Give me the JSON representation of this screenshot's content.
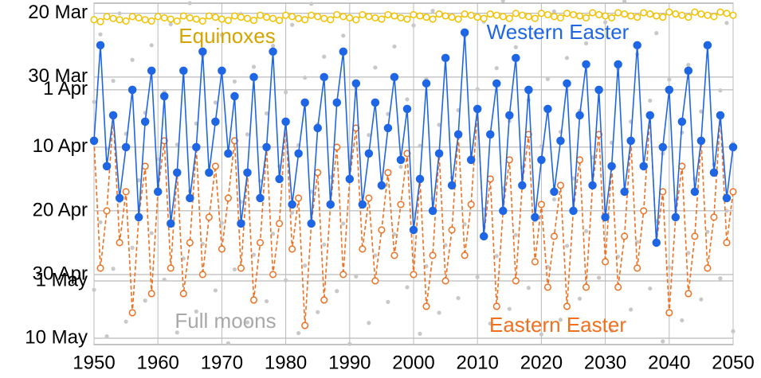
{
  "chart_data": {
    "type": "line",
    "x": [
      1950,
      1951,
      1952,
      1953,
      1954,
      1955,
      1956,
      1957,
      1958,
      1959,
      1960,
      1961,
      1962,
      1963,
      1964,
      1965,
      1966,
      1967,
      1968,
      1969,
      1970,
      1971,
      1972,
      1973,
      1974,
      1975,
      1976,
      1977,
      1978,
      1979,
      1980,
      1981,
      1982,
      1983,
      1984,
      1985,
      1986,
      1987,
      1988,
      1989,
      1990,
      1991,
      1992,
      1993,
      1994,
      1995,
      1996,
      1997,
      1998,
      1999,
      2000,
      2001,
      2002,
      2003,
      2004,
      2005,
      2006,
      2007,
      2008,
      2009,
      2010,
      2011,
      2012,
      2013,
      2014,
      2015,
      2016,
      2017,
      2018,
      2019,
      2020,
      2021,
      2022,
      2023,
      2024,
      2025,
      2026,
      2027,
      2028,
      2029,
      2030,
      2031,
      2032,
      2033,
      2034,
      2035,
      2036,
      2037,
      2038,
      2039,
      2040,
      2041,
      2042,
      2043,
      2044,
      2045,
      2046,
      2047,
      2048,
      2049,
      2050
    ],
    "series": [
      {
        "name": "Eastern Easter",
        "color": "#f07020",
        "marker": "open",
        "dashed": true,
        "values": [
          40,
          60,
          51,
          36,
          56,
          48,
          67,
          52,
          44,
          64,
          48,
          40,
          60,
          45,
          64,
          56,
          41,
          61,
          52,
          44,
          57,
          49,
          40,
          60,
          45,
          65,
          56,
          41,
          61,
          53,
          37,
          57,
          49,
          69,
          53,
          45,
          65,
          50,
          41,
          61,
          46,
          38,
          57,
          49,
          62,
          54,
          45,
          58,
          50,
          42,
          61,
          46,
          66,
          58,
          42,
          62,
          54,
          39,
          58,
          50,
          35,
          55,
          46,
          66,
          51,
          43,
          62,
          47,
          39,
          59,
          50,
          63,
          55,
          47,
          66,
          51,
          43,
          63,
          47,
          39,
          59,
          44,
          63,
          55,
          40,
          60,
          51,
          36,
          56,
          48,
          67,
          52,
          44,
          64,
          55,
          40,
          60,
          52,
          36,
          56,
          48
        ]
      },
      {
        "name": "Western Easter",
        "color": "#1f66e5",
        "marker": "filled",
        "dashed": false,
        "values": [
          40,
          25,
          44,
          36,
          49,
          41,
          32,
          52,
          37,
          29,
          48,
          33,
          53,
          45,
          29,
          49,
          41,
          26,
          45,
          37,
          29,
          42,
          33,
          53,
          45,
          30,
          49,
          41,
          26,
          46,
          37,
          50,
          42,
          34,
          53,
          38,
          30,
          50,
          34,
          26,
          46,
          31,
          50,
          42,
          34,
          47,
          38,
          30,
          43,
          35,
          54,
          46,
          31,
          51,
          42,
          27,
          47,
          39,
          23,
          43,
          35,
          55,
          39,
          31,
          51,
          36,
          27,
          47,
          32,
          52,
          43,
          35,
          48,
          40,
          31,
          51,
          36,
          28,
          47,
          32,
          52,
          44,
          28,
          48,
          40,
          25,
          44,
          36,
          56,
          41,
          32,
          52,
          37,
          29,
          48,
          40,
          25,
          45,
          36,
          49,
          41
        ]
      },
      {
        "name": "Equinoxes",
        "color": "#f2c200",
        "marker": "open",
        "dashed": false,
        "values": [
          21.0,
          21.3,
          20.5,
          20.8,
          21.0,
          21.2,
          20.5,
          20.7,
          21.0,
          21.2,
          20.5,
          20.7,
          20.9,
          21.2,
          20.4,
          20.7,
          20.9,
          21.2,
          20.4,
          20.6,
          20.9,
          21.1,
          20.4,
          20.6,
          20.8,
          21.1,
          20.3,
          20.6,
          20.8,
          21.1,
          20.3,
          20.5,
          20.8,
          21.0,
          20.3,
          20.5,
          20.8,
          21.0,
          20.2,
          20.5,
          20.7,
          21.0,
          20.2,
          20.5,
          20.7,
          20.9,
          20.2,
          20.4,
          20.7,
          20.9,
          20.2,
          20.4,
          20.6,
          20.9,
          20.1,
          20.4,
          20.6,
          20.9,
          20.1,
          20.3,
          20.6,
          20.8,
          20.1,
          20.3,
          20.5,
          20.8,
          20.0,
          20.3,
          20.5,
          20.8,
          20.0,
          20.2,
          20.5,
          20.7,
          20.0,
          20.2,
          20.4,
          20.7,
          19.9,
          20.2,
          20.4,
          20.7,
          19.9,
          20.1,
          20.4,
          20.6,
          19.9,
          20.1,
          20.4,
          20.6,
          19.8,
          20.1,
          20.3,
          20.6,
          19.8,
          20.1,
          20.3,
          20.5,
          19.8,
          20.0,
          20.3
        ]
      }
    ],
    "full_moons": {
      "name": "Full moons",
      "color": "#c8c8c8",
      "x": [
        1950,
        1950,
        1951,
        1951,
        1952,
        1952,
        1953,
        1953,
        1954,
        1954,
        1955,
        1955,
        1956,
        1956,
        1957,
        1958,
        1958,
        1959,
        1959,
        1960,
        1961,
        1961,
        1962,
        1962,
        1963,
        1963,
        1964,
        1964,
        1965,
        1965,
        1966,
        1966,
        1967,
        1967,
        1968,
        1969,
        1969,
        1970,
        1970,
        1971,
        1971,
        1972,
        1972,
        1973,
        1973,
        1974,
        1974,
        1975,
        1975,
        1976,
        1977,
        1977,
        1978,
        1978,
        1979,
        1980,
        1980,
        1981,
        1981,
        1982,
        1982,
        1983,
        1983,
        1984,
        1984,
        1985,
        1985,
        1986,
        1986,
        1987,
        1988,
        1988,
        1989,
        1989,
        1990,
        1990,
        1991,
        1991,
        1992,
        1992,
        1993,
        1993,
        1994,
        1994,
        1995,
        1996,
        1996,
        1997,
        1997,
        1998,
        1999,
        1999,
        2000,
        2000,
        2001,
        2001,
        2002,
        2002,
        2003,
        2003,
        2004,
        2004,
        2005,
        2005,
        2006,
        2007,
        2007,
        2008,
        2008,
        2009,
        2010,
        2010,
        2011,
        2011,
        2012,
        2012,
        2013,
        2013,
        2014,
        2014,
        2015,
        2015,
        2016,
        2016,
        2017,
        2018,
        2018,
        2019,
        2019,
        2020,
        2020,
        2021,
        2021,
        2022,
        2022,
        2023,
        2023,
        2024,
        2024,
        2025,
        2026,
        2026,
        2027,
        2027,
        2028,
        2029,
        2029,
        2030,
        2030,
        2031,
        2031,
        2032,
        2032,
        2033,
        2033,
        2034,
        2034,
        2035,
        2035,
        2036,
        2037,
        2037,
        2038,
        2038,
        2039,
        2039,
        2040,
        2040,
        2041,
        2041,
        2042,
        2042,
        2043,
        2043,
        2044,
        2045,
        2045,
        2046,
        2046,
        2047,
        2048,
        2048,
        2049,
        2049,
        2050,
        2050
      ],
      "values": [
        33.9,
        63.4,
        23.3,
        52.8,
        41.2,
        70.7,
        30.6,
        60.1,
        20.0,
        49.5,
        38.9,
        68.4,
        27.3,
        56.8,
        46.2,
        35.6,
        65.1,
        25.0,
        54.5,
        42.9,
        32.3,
        61.8,
        21.7,
        51.2,
        40.6,
        70.1,
        29.0,
        58.5,
        18.4,
        47.9,
        37.3,
        66.8,
        26.7,
        56.2,
        44.6,
        34.0,
        63.5,
        23.4,
        52.9,
        42.3,
        71.8,
        30.7,
        60.2,
        20.1,
        49.6,
        39.0,
        68.5,
        28.4,
        57.9,
        46.3,
        35.7,
        65.2,
        25.1,
        54.6,
        44.0,
        32.4,
        61.9,
        21.8,
        51.3,
        40.7,
        70.2,
        30.1,
        59.6,
        18.5,
        48.0,
        37.4,
        66.9,
        26.8,
        56.3,
        45.7,
        34.1,
        63.6,
        23.5,
        53.0,
        42.4,
        71.9,
        31.8,
        61.3,
        20.2,
        49.7,
        39.1,
        68.6,
        28.5,
        58.0,
        47.4,
        35.8,
        65.3,
        25.2,
        54.7,
        44.1,
        33.5,
        63.0,
        21.9,
        51.4,
        40.8,
        70.3,
        30.2,
        59.7,
        19.6,
        49.1,
        37.5,
        67.0,
        26.9,
        56.4,
        45.8,
        35.2,
        64.7,
        23.6,
        53.1,
        42.5,
        31.9,
        61.4,
        21.3,
        50.8,
        39.2,
        68.7,
        28.6,
        58.1,
        18.0,
        47.5,
        36.9,
        66.4,
        25.3,
        54.8,
        44.2,
        33.6,
        63.1,
        23.0,
        52.5,
        40.9,
        70.4,
        30.3,
        59.8,
        19.7,
        49.2,
        38.6,
        68.1,
        27.0,
        56.5,
        45.9,
        35.3,
        64.8,
        24.7,
        54.2,
        42.6,
        32.0,
        61.5,
        21.4,
        50.9,
        40.3,
        69.8,
        28.7,
        58.2,
        18.1,
        47.6,
        37.0,
        66.5,
        26.4,
        55.9,
        44.3,
        33.7,
        63.2,
        23.1,
        52.6,
        42.0,
        71.5,
        30.4,
        59.9,
        19.8,
        49.3,
        38.7,
        68.2,
        28.1,
        57.6,
        46.0,
        35.4,
        64.9,
        24.8,
        54.3,
        43.7,
        32.1,
        61.6,
        21.5,
        51.0,
        40.4,
        69.9
      ]
    },
    "xlim": [
      1950,
      2050
    ],
    "xticks": [
      1950,
      1960,
      1970,
      1980,
      1990,
      2000,
      2010,
      2020,
      2030,
      2040,
      2050
    ],
    "ylim": [
      72,
      18.4
    ],
    "yticks": [
      {
        "value": 20,
        "label": "20 Mar"
      },
      {
        "value": 30,
        "label": "30 Mar"
      },
      {
        "value": 32,
        "label": "1 Apr"
      },
      {
        "value": 41,
        "label": "10 Apr"
      },
      {
        "value": 51,
        "label": "20 Apr"
      },
      {
        "value": 61,
        "label": "30 Apr"
      },
      {
        "value": 62,
        "label": "1 May"
      },
      {
        "value": 71,
        "label": "10 May"
      }
    ],
    "grid": true
  }
}
